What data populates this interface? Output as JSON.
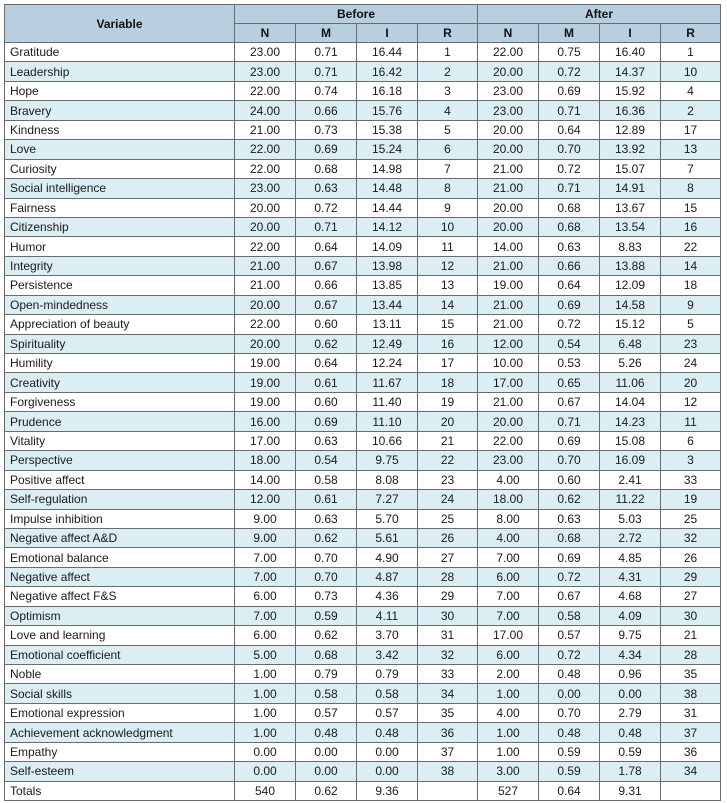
{
  "table": {
    "header": {
      "variable": "Variable",
      "before": "Before",
      "after": "After",
      "sub": [
        "N",
        "M",
        "I",
        "R"
      ]
    },
    "rows": [
      {
        "variable": "Gratitude",
        "before": [
          "23.00",
          "0.71",
          "16.44",
          "1"
        ],
        "after": [
          "22.00",
          "0.75",
          "16.40",
          "1"
        ]
      },
      {
        "variable": "Leadership",
        "before": [
          "23.00",
          "0.71",
          "16.42",
          "2"
        ],
        "after": [
          "20.00",
          "0.72",
          "14.37",
          "10"
        ]
      },
      {
        "variable": "Hope",
        "before": [
          "22.00",
          "0.74",
          "16.18",
          "3"
        ],
        "after": [
          "23.00",
          "0.69",
          "15.92",
          "4"
        ]
      },
      {
        "variable": "Bravery",
        "before": [
          "24.00",
          "0.66",
          "15.76",
          "4"
        ],
        "after": [
          "23.00",
          "0.71",
          "16.36",
          "2"
        ]
      },
      {
        "variable": "Kindness",
        "before": [
          "21.00",
          "0.73",
          "15.38",
          "5"
        ],
        "after": [
          "20.00",
          "0.64",
          "12.89",
          "17"
        ]
      },
      {
        "variable": "Love",
        "before": [
          "22.00",
          "0.69",
          "15.24",
          "6"
        ],
        "after": [
          "20.00",
          "0.70",
          "13.92",
          "13"
        ]
      },
      {
        "variable": "Curiosity",
        "before": [
          "22.00",
          "0.68",
          "14.98",
          "7"
        ],
        "after": [
          "21.00",
          "0.72",
          "15.07",
          "7"
        ]
      },
      {
        "variable": "Social intelligence",
        "before": [
          "23.00",
          "0.63",
          "14.48",
          "8"
        ],
        "after": [
          "21.00",
          "0.71",
          "14.91",
          "8"
        ]
      },
      {
        "variable": "Fairness",
        "before": [
          "20.00",
          "0.72",
          "14.44",
          "9"
        ],
        "after": [
          "20.00",
          "0.68",
          "13.67",
          "15"
        ]
      },
      {
        "variable": "Citizenship",
        "before": [
          "20.00",
          "0.71",
          "14.12",
          "10"
        ],
        "after": [
          "20.00",
          "0.68",
          "13.54",
          "16"
        ]
      },
      {
        "variable": "Humor",
        "before": [
          "22.00",
          "0.64",
          "14.09",
          "11"
        ],
        "after": [
          "14.00",
          "0.63",
          "8.83",
          "22"
        ]
      },
      {
        "variable": "Integrity",
        "before": [
          "21.00",
          "0.67",
          "13.98",
          "12"
        ],
        "after": [
          "21.00",
          "0.66",
          "13.88",
          "14"
        ]
      },
      {
        "variable": "Persistence",
        "before": [
          "21.00",
          "0.66",
          "13.85",
          "13"
        ],
        "after": [
          "19.00",
          "0.64",
          "12.09",
          "18"
        ]
      },
      {
        "variable": "Open-mindedness",
        "before": [
          "20.00",
          "0.67",
          "13.44",
          "14"
        ],
        "after": [
          "21.00",
          "0.69",
          "14.58",
          "9"
        ]
      },
      {
        "variable": "Appreciation of beauty",
        "before": [
          "22.00",
          "0.60",
          "13.11",
          "15"
        ],
        "after": [
          "21.00",
          "0.72",
          "15.12",
          "5"
        ]
      },
      {
        "variable": "Spirituality",
        "before": [
          "20.00",
          "0.62",
          "12.49",
          "16"
        ],
        "after": [
          "12.00",
          "0.54",
          "6.48",
          "23"
        ]
      },
      {
        "variable": "Humility",
        "before": [
          "19.00",
          "0.64",
          "12.24",
          "17"
        ],
        "after": [
          "10.00",
          "0.53",
          "5.26",
          "24"
        ]
      },
      {
        "variable": "Creativity",
        "before": [
          "19.00",
          "0.61",
          "11.67",
          "18"
        ],
        "after": [
          "17.00",
          "0.65",
          "11.06",
          "20"
        ]
      },
      {
        "variable": "Forgiveness",
        "before": [
          "19.00",
          "0.60",
          "11.40",
          "19"
        ],
        "after": [
          "21.00",
          "0.67",
          "14.04",
          "12"
        ]
      },
      {
        "variable": "Prudence",
        "before": [
          "16.00",
          "0.69",
          "11.10",
          "20"
        ],
        "after": [
          "20.00",
          "0.71",
          "14.23",
          "11"
        ]
      },
      {
        "variable": "Vitality",
        "before": [
          "17.00",
          "0.63",
          "10.66",
          "21"
        ],
        "after": [
          "22.00",
          "0.69",
          "15.08",
          "6"
        ]
      },
      {
        "variable": "Perspective",
        "before": [
          "18.00",
          "0.54",
          "9.75",
          "22"
        ],
        "after": [
          "23.00",
          "0.70",
          "16.09",
          "3"
        ]
      },
      {
        "variable": "Positive affect",
        "before": [
          "14.00",
          "0.58",
          "8.08",
          "23"
        ],
        "after": [
          "4.00",
          "0.60",
          "2.41",
          "33"
        ]
      },
      {
        "variable": "Self-regulation",
        "before": [
          "12.00",
          "0.61",
          "7.27",
          "24"
        ],
        "after": [
          "18.00",
          "0.62",
          "11.22",
          "19"
        ]
      },
      {
        "variable": "Impulse inhibition",
        "before": [
          "9.00",
          "0.63",
          "5.70",
          "25"
        ],
        "after": [
          "8.00",
          "0.63",
          "5.03",
          "25"
        ]
      },
      {
        "variable": "Negative affect A&D",
        "before": [
          "9.00",
          "0.62",
          "5.61",
          "26"
        ],
        "after": [
          "4.00",
          "0.68",
          "2.72",
          "32"
        ]
      },
      {
        "variable": "Emotional balance",
        "before": [
          "7.00",
          "0.70",
          "4.90",
          "27"
        ],
        "after": [
          "7.00",
          "0.69",
          "4.85",
          "26"
        ]
      },
      {
        "variable": "Negative affect",
        "before": [
          "7.00",
          "0.70",
          "4.87",
          "28"
        ],
        "after": [
          "6.00",
          "0.72",
          "4.31",
          "29"
        ]
      },
      {
        "variable": "Negative affect F&S",
        "before": [
          "6.00",
          "0.73",
          "4.36",
          "29"
        ],
        "after": [
          "7.00",
          "0.67",
          "4.68",
          "27"
        ]
      },
      {
        "variable": "Optimism",
        "before": [
          "7.00",
          "0.59",
          "4.11",
          "30"
        ],
        "after": [
          "7.00",
          "0.58",
          "4.09",
          "30"
        ]
      },
      {
        "variable": "Love and learning",
        "before": [
          "6.00",
          "0.62",
          "3.70",
          "31"
        ],
        "after": [
          "17.00",
          "0.57",
          "9.75",
          "21"
        ]
      },
      {
        "variable": "Emotional coefficient",
        "before": [
          "5.00",
          "0.68",
          "3.42",
          "32"
        ],
        "after": [
          "6.00",
          "0.72",
          "4.34",
          "28"
        ]
      },
      {
        "variable": "Noble",
        "before": [
          "1.00",
          "0.79",
          "0.79",
          "33"
        ],
        "after": [
          "2.00",
          "0.48",
          "0.96",
          "35"
        ]
      },
      {
        "variable": "Social skills",
        "before": [
          "1.00",
          "0.58",
          "0.58",
          "34"
        ],
        "after": [
          "1.00",
          "0.00",
          "0.00",
          "38"
        ]
      },
      {
        "variable": "Emotional expression",
        "before": [
          "1.00",
          "0.57",
          "0.57",
          "35"
        ],
        "after": [
          "4.00",
          "0.70",
          "2.79",
          "31"
        ]
      },
      {
        "variable": "Achievement acknowledgment",
        "before": [
          "1.00",
          "0.48",
          "0.48",
          "36"
        ],
        "after": [
          "1.00",
          "0.48",
          "0.48",
          "37"
        ]
      },
      {
        "variable": "Empathy",
        "before": [
          "0.00",
          "0.00",
          "0.00",
          "37"
        ],
        "after": [
          "1.00",
          "0.59",
          "0.59",
          "36"
        ]
      },
      {
        "variable": "Self-esteem",
        "before": [
          "0.00",
          "0.00",
          "0.00",
          "38"
        ],
        "after": [
          "3.00",
          "0.59",
          "1.78",
          "34"
        ]
      },
      {
        "variable": "Totals",
        "before": [
          "540",
          "0.62",
          "9.36",
          ""
        ],
        "after": [
          "527",
          "0.64",
          "9.31",
          ""
        ]
      }
    ]
  },
  "colors": {
    "header_bg": "#b8cfe0",
    "stripe_bg": "#daeef3",
    "border": "#6b6b6b"
  }
}
